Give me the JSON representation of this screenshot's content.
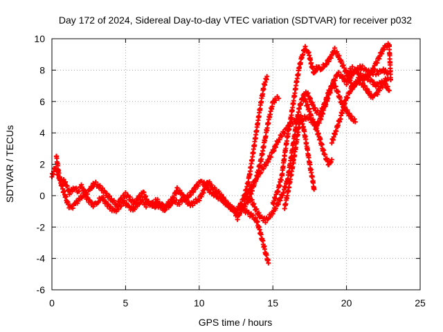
{
  "chart_data": {
    "type": "scatter",
    "title": "Day 172 of 2024, Sidereal Day-to-day VTEC variation (SDTVAR) for receiver p032",
    "xlabel": "GPS time / hours",
    "ylabel": "SDTVAR / TECUs",
    "xlim": [
      0,
      25
    ],
    "ylim": [
      -6,
      10
    ],
    "xticks": [
      0,
      5,
      10,
      15,
      20,
      25
    ],
    "yticks": [
      -6,
      -4,
      -2,
      0,
      2,
      4,
      6,
      8,
      10
    ],
    "grid": true,
    "marker": "+",
    "color": "#ff0000",
    "series": [
      {
        "name": "p032",
        "segments": [
          [
            [
              0.0,
              1.2
            ],
            [
              0.2,
              1.8
            ],
            [
              0.4,
              1.4
            ],
            [
              0.6,
              0.9
            ],
            [
              0.8,
              1.0
            ],
            [
              1.0,
              0.6
            ],
            [
              1.2,
              0.2
            ],
            [
              1.5,
              0.5
            ],
            [
              1.8,
              0.3
            ],
            [
              2.0,
              0.6
            ],
            [
              2.3,
              0.1
            ],
            [
              2.6,
              0.4
            ],
            [
              2.9,
              0.8
            ],
            [
              3.2,
              0.6
            ],
            [
              3.5,
              0.3
            ],
            [
              3.8,
              0.0
            ],
            [
              4.1,
              -0.3
            ],
            [
              4.4,
              -0.6
            ],
            [
              4.7,
              -0.2
            ],
            [
              5.0,
              0.1
            ],
            [
              5.3,
              -0.2
            ],
            [
              5.6,
              -0.5
            ],
            [
              5.9,
              -0.1
            ],
            [
              6.2,
              0.2
            ],
            [
              6.5,
              -0.4
            ],
            [
              6.8,
              -0.6
            ],
            [
              7.1,
              -0.3
            ],
            [
              7.4,
              -0.5
            ],
            [
              7.7,
              -0.8
            ],
            [
              8.0,
              -0.6
            ],
            [
              8.3,
              -0.3
            ],
            [
              8.6,
              -0.5
            ],
            [
              8.9,
              -0.2
            ],
            [
              9.2,
              -0.1
            ],
            [
              9.5,
              0.2
            ],
            [
              9.8,
              0.6
            ],
            [
              10.1,
              0.9
            ],
            [
              10.4,
              0.7
            ],
            [
              10.7,
              0.3
            ],
            [
              11.0,
              0.1
            ],
            [
              11.3,
              -0.1
            ],
            [
              11.6,
              -0.3
            ],
            [
              11.9,
              -0.6
            ],
            [
              12.2,
              -0.8
            ],
            [
              12.5,
              -1.0
            ],
            [
              12.8,
              -0.6
            ],
            [
              13.0,
              -0.2
            ],
            [
              13.2,
              0.4
            ],
            [
              13.4,
              1.2
            ],
            [
              13.6,
              2.4
            ],
            [
              13.8,
              3.6
            ],
            [
              14.0,
              4.8
            ],
            [
              14.2,
              6.0
            ],
            [
              14.4,
              7.0
            ],
            [
              14.6,
              7.6
            ]
          ],
          [
            [
              0.3,
              2.5
            ],
            [
              0.5,
              1.2
            ],
            [
              0.7,
              0.5
            ],
            [
              0.9,
              0.0
            ],
            [
              1.1,
              -0.6
            ],
            [
              1.3,
              -0.8
            ],
            [
              1.6,
              -0.5
            ],
            [
              1.9,
              -0.2
            ],
            [
              2.2,
              0.1
            ],
            [
              2.5,
              -0.3
            ],
            [
              2.8,
              -0.6
            ],
            [
              3.1,
              -0.4
            ],
            [
              3.4,
              -0.1
            ],
            [
              3.7,
              -0.5
            ],
            [
              4.0,
              -0.8
            ],
            [
              4.3,
              -1.0
            ],
            [
              4.6,
              -0.7
            ],
            [
              4.9,
              -0.4
            ],
            [
              5.2,
              -0.7
            ],
            [
              5.5,
              -0.9
            ],
            [
              5.8,
              -0.6
            ],
            [
              6.1,
              -0.3
            ],
            [
              6.4,
              -0.6
            ],
            [
              6.7,
              -0.4
            ],
            [
              7.0,
              -0.7
            ],
            [
              7.3,
              -0.6
            ],
            [
              7.6,
              -0.9
            ],
            [
              7.9,
              -0.5
            ],
            [
              8.2,
              -0.2
            ],
            [
              8.5,
              0.4
            ],
            [
              8.8,
              0.1
            ],
            [
              9.1,
              -0.3
            ],
            [
              9.4,
              -0.6
            ],
            [
              9.7,
              -0.4
            ],
            [
              10.0,
              -0.2
            ],
            [
              10.3,
              0.3
            ],
            [
              10.6,
              0.9
            ],
            [
              10.9,
              0.5
            ],
            [
              11.2,
              0.3
            ],
            [
              11.5,
              0.0
            ],
            [
              11.8,
              -0.4
            ],
            [
              12.1,
              -0.7
            ],
            [
              12.4,
              -1.0
            ],
            [
              12.6,
              -1.4
            ],
            [
              12.8,
              -1.0
            ],
            [
              13.0,
              -0.7
            ],
            [
              13.3,
              -0.4
            ],
            [
              13.6,
              0.4
            ],
            [
              13.9,
              1.2
            ],
            [
              14.2,
              2.3
            ],
            [
              14.5,
              3.8
            ],
            [
              14.8,
              5.2
            ],
            [
              15.0,
              5.9
            ],
            [
              15.2,
              6.2
            ],
            [
              15.4,
              6.2
            ]
          ],
          [
            [
              12.8,
              -0.6
            ],
            [
              13.0,
              -0.9
            ],
            [
              13.3,
              -1.1
            ],
            [
              13.6,
              -1.3
            ],
            [
              13.9,
              -1.6
            ],
            [
              14.1,
              -2.2
            ],
            [
              14.3,
              -2.9
            ],
            [
              14.5,
              -3.6
            ],
            [
              14.7,
              -4.3
            ]
          ],
          [
            [
              13.0,
              -0.3
            ],
            [
              13.4,
              0.3
            ],
            [
              13.8,
              1.0
            ],
            [
              14.2,
              1.6
            ],
            [
              14.6,
              2.1
            ],
            [
              15.0,
              2.8
            ],
            [
              15.4,
              3.6
            ],
            [
              15.8,
              4.1
            ],
            [
              16.2,
              4.6
            ],
            [
              16.6,
              4.8
            ],
            [
              17.0,
              4.9
            ],
            [
              17.4,
              5.0
            ],
            [
              17.8,
              4.6
            ],
            [
              18.2,
              3.6
            ],
            [
              18.5,
              2.6
            ],
            [
              18.8,
              2.0
            ],
            [
              19.0,
              2.3
            ]
          ],
          [
            [
              13.5,
              -0.2
            ],
            [
              13.8,
              -0.8
            ],
            [
              14.1,
              -1.3
            ],
            [
              14.5,
              -1.6
            ],
            [
              14.9,
              -1.2
            ],
            [
              15.3,
              -0.6
            ],
            [
              15.7,
              0.2
            ],
            [
              16.0,
              1.0
            ],
            [
              16.2,
              2.2
            ],
            [
              16.4,
              3.4
            ],
            [
              16.6,
              4.6
            ],
            [
              16.8,
              5.6
            ],
            [
              17.0,
              6.2
            ],
            [
              17.2,
              6.0
            ],
            [
              17.4,
              5.6
            ],
            [
              17.6,
              5.0
            ],
            [
              17.9,
              4.4
            ],
            [
              18.2,
              4.8
            ],
            [
              18.5,
              5.6
            ],
            [
              18.8,
              6.4
            ],
            [
              19.1,
              7.2
            ],
            [
              19.4,
              7.8
            ],
            [
              19.7,
              7.6
            ],
            [
              20.0,
              7.2
            ],
            [
              20.3,
              7.6
            ],
            [
              20.6,
              8.0
            ],
            [
              21.0,
              8.2
            ],
            [
              21.5,
              7.9
            ],
            [
              22.0,
              7.8
            ],
            [
              22.5,
              8.0
            ],
            [
              22.8,
              7.8
            ]
          ],
          [
            [
              15.0,
              -0.5
            ],
            [
              15.3,
              0.2
            ],
            [
              15.6,
              1.2
            ],
            [
              15.8,
              2.6
            ],
            [
              16.0,
              3.8
            ],
            [
              16.2,
              4.8
            ],
            [
              16.4,
              6.0
            ],
            [
              16.6,
              7.2
            ],
            [
              16.8,
              8.2
            ],
            [
              17.0,
              9.0
            ],
            [
              17.2,
              9.4
            ],
            [
              17.4,
              9.2
            ],
            [
              17.6,
              8.4
            ],
            [
              17.8,
              7.8
            ],
            [
              18.0,
              8.2
            ],
            [
              18.3,
              8.1
            ],
            [
              18.6,
              8.4
            ],
            [
              18.9,
              8.8
            ],
            [
              19.2,
              9.3
            ],
            [
              19.5,
              8.8
            ],
            [
              19.8,
              8.2
            ],
            [
              20.1,
              7.6
            ],
            [
              20.4,
              6.9
            ],
            [
              20.8,
              7.4
            ],
            [
              21.2,
              7.6
            ],
            [
              21.6,
              7.4
            ],
            [
              22.0,
              7.0
            ],
            [
              22.4,
              7.2
            ],
            [
              22.8,
              7.5
            ]
          ],
          [
            [
              15.8,
              -0.8
            ],
            [
              16.1,
              0.6
            ],
            [
              16.4,
              2.2
            ],
            [
              16.7,
              4.0
            ],
            [
              16.9,
              5.0
            ],
            [
              17.1,
              4.2
            ],
            [
              17.3,
              3.2
            ],
            [
              17.5,
              2.0
            ],
            [
              17.7,
              1.0
            ],
            [
              17.8,
              0.4
            ]
          ],
          [
            [
              17.0,
              6.3
            ],
            [
              17.3,
              6.6
            ],
            [
              17.6,
              6.0
            ],
            [
              17.9,
              5.4
            ],
            [
              18.2,
              5.2
            ],
            [
              18.5,
              5.8
            ],
            [
              18.8,
              6.6
            ],
            [
              19.1,
              7.2
            ],
            [
              19.4,
              6.6
            ],
            [
              19.7,
              5.8
            ],
            [
              20.0,
              5.4
            ],
            [
              20.3,
              5.0
            ],
            [
              20.6,
              4.7
            ]
          ],
          [
            [
              19.0,
              3.4
            ],
            [
              19.3,
              4.2
            ],
            [
              19.6,
              5.0
            ],
            [
              19.9,
              6.0
            ],
            [
              20.2,
              6.6
            ],
            [
              20.5,
              7.0
            ],
            [
              20.8,
              7.3
            ],
            [
              21.1,
              7.1
            ],
            [
              21.4,
              6.7
            ],
            [
              21.7,
              6.3
            ],
            [
              22.0,
              6.4
            ],
            [
              22.3,
              6.9
            ],
            [
              22.6,
              7.1
            ],
            [
              22.9,
              6.7
            ]
          ],
          [
            [
              20.0,
              7.8
            ],
            [
              20.4,
              8.1
            ],
            [
              20.8,
              7.8
            ],
            [
              21.2,
              7.5
            ],
            [
              21.6,
              7.7
            ],
            [
              22.0,
              8.4
            ],
            [
              22.3,
              9.0
            ],
            [
              22.6,
              9.5
            ],
            [
              22.9,
              9.6
            ],
            [
              23.0,
              7.4
            ]
          ]
        ]
      }
    ]
  }
}
